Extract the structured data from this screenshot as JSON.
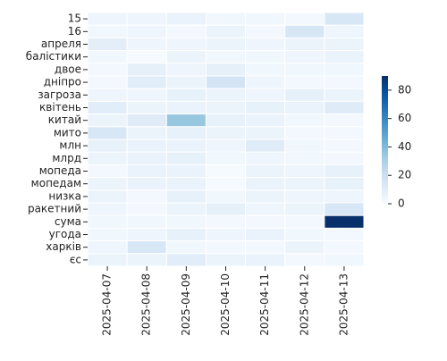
{
  "chart_data": {
    "type": "heatmap",
    "x": [
      "2025-04-07",
      "2025-04-08",
      "2025-04-09",
      "2025-04-10",
      "2025-04-11",
      "2025-04-12",
      "2025-04-13"
    ],
    "y": [
      "15",
      "16",
      "апреля",
      "балістики",
      "двое",
      "дніпро",
      "загроза",
      "квітень",
      "китай",
      "мито",
      "млн",
      "млрд",
      "мопеда",
      "мопедам",
      "низка",
      "ракетний",
      "сума",
      "угода",
      "харків",
      "єс"
    ],
    "values": [
      [
        4,
        4,
        6,
        3,
        3,
        2,
        14
      ],
      [
        3,
        4,
        2,
        5,
        2,
        15,
        4
      ],
      [
        9,
        4,
        4,
        5,
        4,
        5,
        5
      ],
      [
        3,
        1,
        5,
        3,
        3,
        4,
        6
      ],
      [
        2,
        8,
        4,
        8,
        3,
        3,
        3
      ],
      [
        2,
        10,
        5,
        16,
        4,
        2,
        2
      ],
      [
        4,
        4,
        7,
        5,
        4,
        8,
        5
      ],
      [
        10,
        5,
        6,
        5,
        7,
        6,
        11
      ],
      [
        5,
        11,
        35,
        7,
        6,
        3,
        2
      ],
      [
        14,
        5,
        7,
        5,
        5,
        2,
        2
      ],
      [
        7,
        6,
        6,
        4,
        11,
        3,
        2
      ],
      [
        5,
        6,
        7,
        3,
        4,
        3,
        2
      ],
      [
        2,
        6,
        6,
        1,
        5,
        4,
        7
      ],
      [
        5,
        6,
        6,
        1,
        6,
        5,
        7
      ],
      [
        5,
        2,
        7,
        3,
        5,
        4,
        4
      ],
      [
        4,
        2,
        5,
        8,
        4,
        5,
        14
      ],
      [
        3,
        3,
        3,
        2,
        2,
        2,
        90
      ],
      [
        3,
        4,
        7,
        4,
        6,
        3,
        2
      ],
      [
        4,
        14,
        3,
        2,
        2,
        5,
        2
      ],
      [
        5,
        5,
        10,
        5,
        6,
        2,
        3
      ]
    ],
    "colormap": [
      "#f7fbff",
      "#deebf7",
      "#c6dbef",
      "#9ecae1",
      "#6baed6",
      "#4292c6",
      "#2171b5",
      "#08519c",
      "#08306b"
    ],
    "clim": [
      0,
      90
    ],
    "cticks": [
      0,
      20,
      40,
      60,
      80
    ]
  }
}
